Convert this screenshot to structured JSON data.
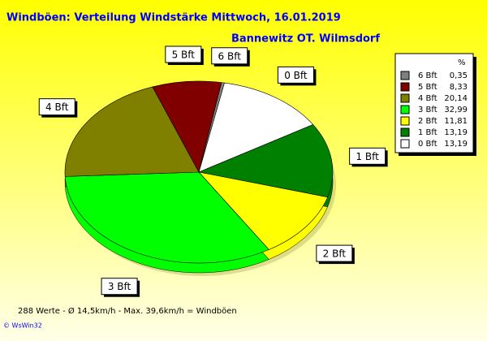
{
  "chart_data": {
    "type": "pie",
    "title": "Windböen: Verteilung Windstärke  Mittwoch, 16.01.2019",
    "subtitle": "Bannewitz OT. Wilmsdorf",
    "legend_header": "%",
    "categories": [
      "6 Bft",
      "5 Bft",
      "4 Bft",
      "3 Bft",
      "2 Bft",
      "1 Bft",
      "0 Bft"
    ],
    "values": [
      0.35,
      8.33,
      20.14,
      32.99,
      11.81,
      13.19,
      13.19
    ],
    "value_labels": [
      "0,35",
      "8,33",
      "20,14",
      "32,99",
      "11,81",
      "13,19",
      "13,19"
    ],
    "colors": [
      "#808080",
      "#800000",
      "#808000",
      "#00ff00",
      "#ffff00",
      "#008000",
      "#ffffff"
    ],
    "legend": "top-right",
    "footer": "288 Werte   -   Ø 14,5km/h  -  Max. 39,6km/h = Windböen",
    "credit": "© WsWin32"
  }
}
